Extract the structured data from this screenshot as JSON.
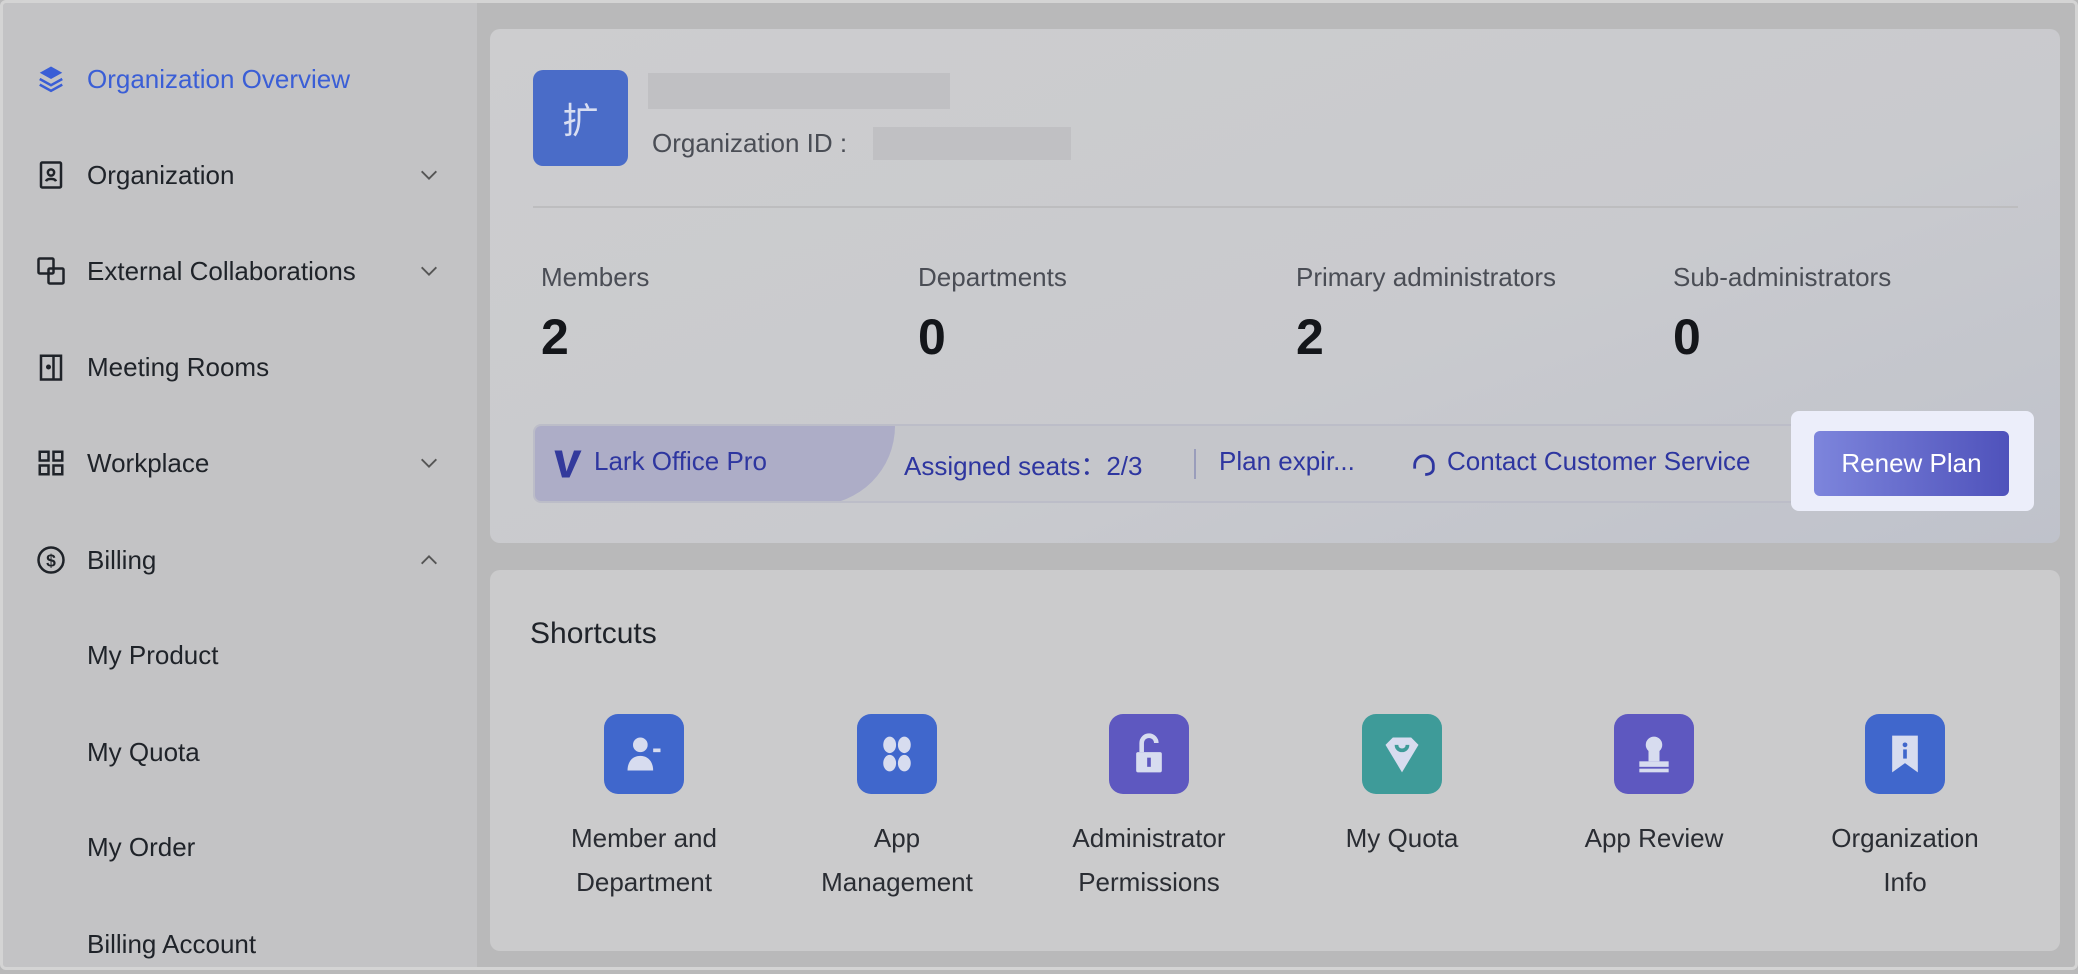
{
  "sidebar": {
    "items": [
      {
        "label": "Organization Overview",
        "icon": "layers-icon",
        "active": true
      },
      {
        "label": "Organization",
        "icon": "contact-book-icon",
        "expand": "down"
      },
      {
        "label": "External Collaborations",
        "icon": "link-squares-icon",
        "expand": "down"
      },
      {
        "label": "Meeting Rooms",
        "icon": "door-icon"
      },
      {
        "label": "Workplace",
        "icon": "grid-icon",
        "expand": "down"
      },
      {
        "label": "Billing",
        "icon": "dollar-circle-icon",
        "expand": "up"
      },
      {
        "label": "My Product"
      },
      {
        "label": "My Quota"
      },
      {
        "label": "My Order"
      },
      {
        "label": "Billing Account"
      }
    ]
  },
  "org": {
    "avatar_char": "扩",
    "id_label": "Organization ID :"
  },
  "stats": [
    {
      "label": "Members",
      "value": "2"
    },
    {
      "label": "Departments",
      "value": "0"
    },
    {
      "label": "Primary administrators",
      "value": "2"
    },
    {
      "label": "Sub-administrators",
      "value": "0"
    }
  ],
  "plan": {
    "name": "Lark Office Pro",
    "seats": "Assigned seats：2/3",
    "expiry": "Plan expir...",
    "contact": "Contact Customer Service",
    "renew": "Renew Plan"
  },
  "shortcuts": {
    "title": "Shortcuts",
    "items": [
      {
        "line1": "Member and",
        "line2": "Department",
        "color": "#4067cc"
      },
      {
        "line1": "App",
        "line2": "Management",
        "color": "#4067cc"
      },
      {
        "line1": "Administrator",
        "line2": "Permissions",
        "color": "#5e58c0"
      },
      {
        "line1": "My Quota",
        "line2": "",
        "color": "#3e9b99"
      },
      {
        "line1": "App Review",
        "line2": "",
        "color": "#5e58c0"
      },
      {
        "line1": "Organization",
        "line2": "Info",
        "color": "#4067cc"
      }
    ]
  }
}
